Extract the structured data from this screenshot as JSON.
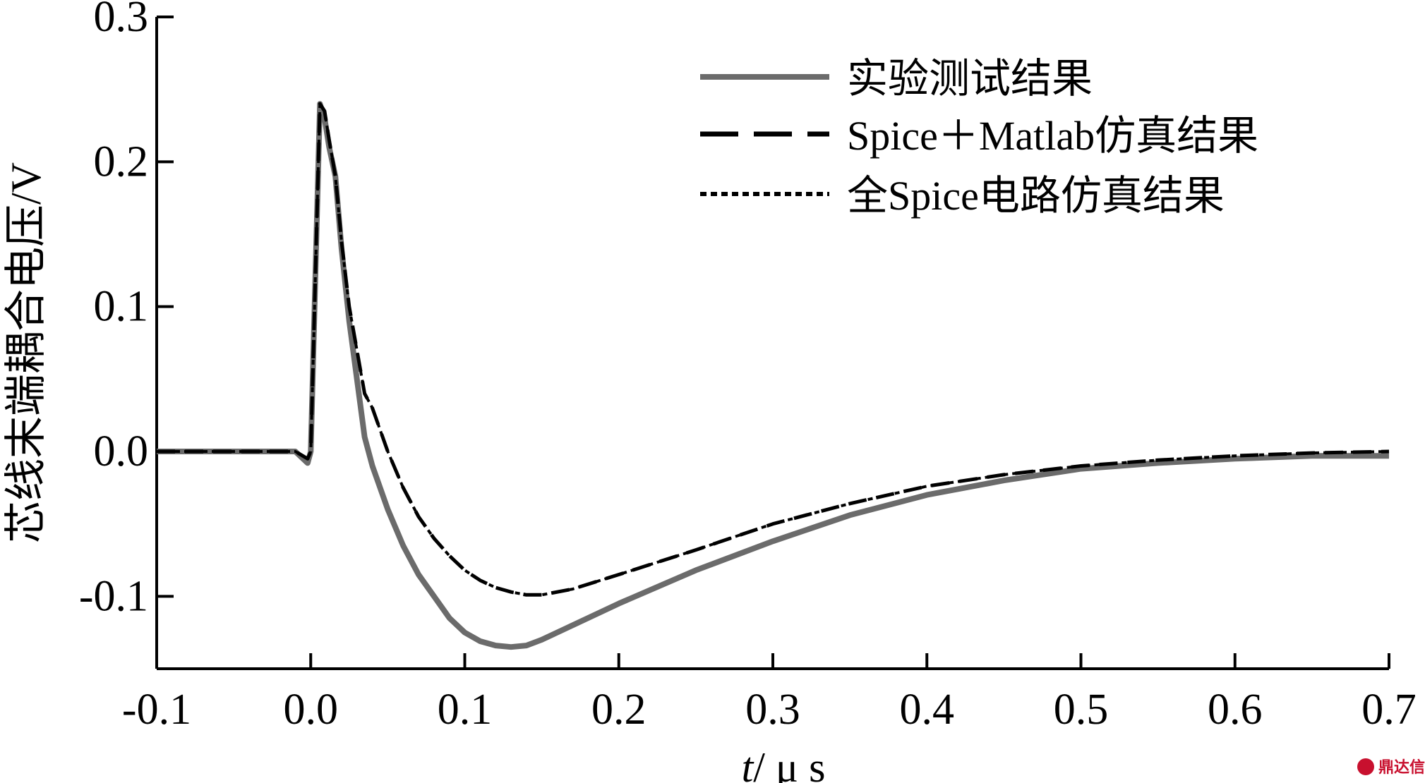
{
  "chart_data": {
    "type": "line",
    "xlabel_italic": "t",
    "xlabel_rest": "/ μ s",
    "ylabel": "芯线末端耦合电压/V",
    "xlim": [
      -0.1,
      0.7
    ],
    "ylim": [
      -0.15,
      0.3
    ],
    "x_ticks": [
      "-0.1",
      "0.0",
      "0.1",
      "0.2",
      "0.3",
      "0.4",
      "0.5",
      "0.6",
      "0.7"
    ],
    "y_ticks": [
      "0.3",
      "0.2",
      "0.1",
      "0.0",
      "-0.1"
    ],
    "grid": false,
    "legend_position": "top-right",
    "series": [
      {
        "name": "实验测试结果",
        "style": "solid",
        "color": "#6b6b6b",
        "points": [
          [
            -0.1,
            0.0
          ],
          [
            -0.05,
            0.0
          ],
          [
            -0.01,
            0.0
          ],
          [
            -0.002,
            -0.008
          ],
          [
            0.0,
            0.0
          ],
          [
            0.003,
            0.12
          ],
          [
            0.006,
            0.24
          ],
          [
            0.009,
            0.23
          ],
          [
            0.012,
            0.21
          ],
          [
            0.016,
            0.19
          ],
          [
            0.02,
            0.14
          ],
          [
            0.025,
            0.09
          ],
          [
            0.03,
            0.05
          ],
          [
            0.035,
            0.01
          ],
          [
            0.04,
            -0.01
          ],
          [
            0.05,
            -0.04
          ],
          [
            0.06,
            -0.065
          ],
          [
            0.07,
            -0.085
          ],
          [
            0.08,
            -0.1
          ],
          [
            0.09,
            -0.115
          ],
          [
            0.1,
            -0.125
          ],
          [
            0.11,
            -0.131
          ],
          [
            0.12,
            -0.134
          ],
          [
            0.13,
            -0.135
          ],
          [
            0.14,
            -0.134
          ],
          [
            0.15,
            -0.13
          ],
          [
            0.17,
            -0.12
          ],
          [
            0.2,
            -0.105
          ],
          [
            0.25,
            -0.082
          ],
          [
            0.3,
            -0.062
          ],
          [
            0.35,
            -0.044
          ],
          [
            0.4,
            -0.03
          ],
          [
            0.45,
            -0.02
          ],
          [
            0.5,
            -0.012
          ],
          [
            0.55,
            -0.008
          ],
          [
            0.6,
            -0.005
          ],
          [
            0.65,
            -0.003
          ],
          [
            0.7,
            -0.003
          ]
        ]
      },
      {
        "name": "Spice＋Matlab仿真结果",
        "style": "dashed",
        "color": "#000000",
        "points": [
          [
            -0.1,
            0.0
          ],
          [
            -0.05,
            0.0
          ],
          [
            -0.01,
            0.0
          ],
          [
            -0.002,
            -0.005
          ],
          [
            0.0,
            0.0
          ],
          [
            0.003,
            0.12
          ],
          [
            0.006,
            0.24
          ],
          [
            0.009,
            0.235
          ],
          [
            0.012,
            0.215
          ],
          [
            0.016,
            0.19
          ],
          [
            0.02,
            0.145
          ],
          [
            0.025,
            0.1
          ],
          [
            0.03,
            0.07
          ],
          [
            0.035,
            0.04
          ],
          [
            0.04,
            0.03
          ],
          [
            0.05,
            0.0
          ],
          [
            0.06,
            -0.025
          ],
          [
            0.07,
            -0.045
          ],
          [
            0.08,
            -0.06
          ],
          [
            0.09,
            -0.072
          ],
          [
            0.1,
            -0.082
          ],
          [
            0.11,
            -0.089
          ],
          [
            0.12,
            -0.094
          ],
          [
            0.13,
            -0.097
          ],
          [
            0.14,
            -0.099
          ],
          [
            0.15,
            -0.099
          ],
          [
            0.17,
            -0.095
          ],
          [
            0.2,
            -0.085
          ],
          [
            0.25,
            -0.068
          ],
          [
            0.3,
            -0.05
          ],
          [
            0.35,
            -0.036
          ],
          [
            0.4,
            -0.024
          ],
          [
            0.45,
            -0.016
          ],
          [
            0.5,
            -0.01
          ],
          [
            0.55,
            -0.006
          ],
          [
            0.6,
            -0.003
          ],
          [
            0.65,
            -0.001
          ],
          [
            0.7,
            0.0
          ]
        ]
      },
      {
        "name": "全Spice电路仿真结果",
        "style": "dotted",
        "color": "#000000",
        "points": [
          [
            -0.1,
            0.0
          ],
          [
            -0.05,
            0.0
          ],
          [
            -0.01,
            0.0
          ],
          [
            -0.002,
            -0.005
          ],
          [
            0.0,
            0.0
          ],
          [
            0.003,
            0.12
          ],
          [
            0.006,
            0.24
          ],
          [
            0.009,
            0.235
          ],
          [
            0.012,
            0.215
          ],
          [
            0.016,
            0.19
          ],
          [
            0.02,
            0.145
          ],
          [
            0.025,
            0.1
          ],
          [
            0.03,
            0.07
          ],
          [
            0.035,
            0.04
          ],
          [
            0.04,
            0.03
          ],
          [
            0.05,
            0.0
          ],
          [
            0.06,
            -0.025
          ],
          [
            0.07,
            -0.045
          ],
          [
            0.08,
            -0.06
          ],
          [
            0.09,
            -0.072
          ],
          [
            0.1,
            -0.082
          ],
          [
            0.11,
            -0.089
          ],
          [
            0.12,
            -0.094
          ],
          [
            0.13,
            -0.097
          ],
          [
            0.14,
            -0.099
          ],
          [
            0.15,
            -0.099
          ],
          [
            0.17,
            -0.095
          ],
          [
            0.2,
            -0.085
          ],
          [
            0.25,
            -0.068
          ],
          [
            0.3,
            -0.05
          ],
          [
            0.35,
            -0.036
          ],
          [
            0.4,
            -0.024
          ],
          [
            0.45,
            -0.016
          ],
          [
            0.5,
            -0.01
          ],
          [
            0.55,
            -0.006
          ],
          [
            0.6,
            -0.003
          ],
          [
            0.65,
            -0.001
          ],
          [
            0.7,
            0.0
          ]
        ]
      }
    ]
  },
  "watermark": "鼎达信"
}
